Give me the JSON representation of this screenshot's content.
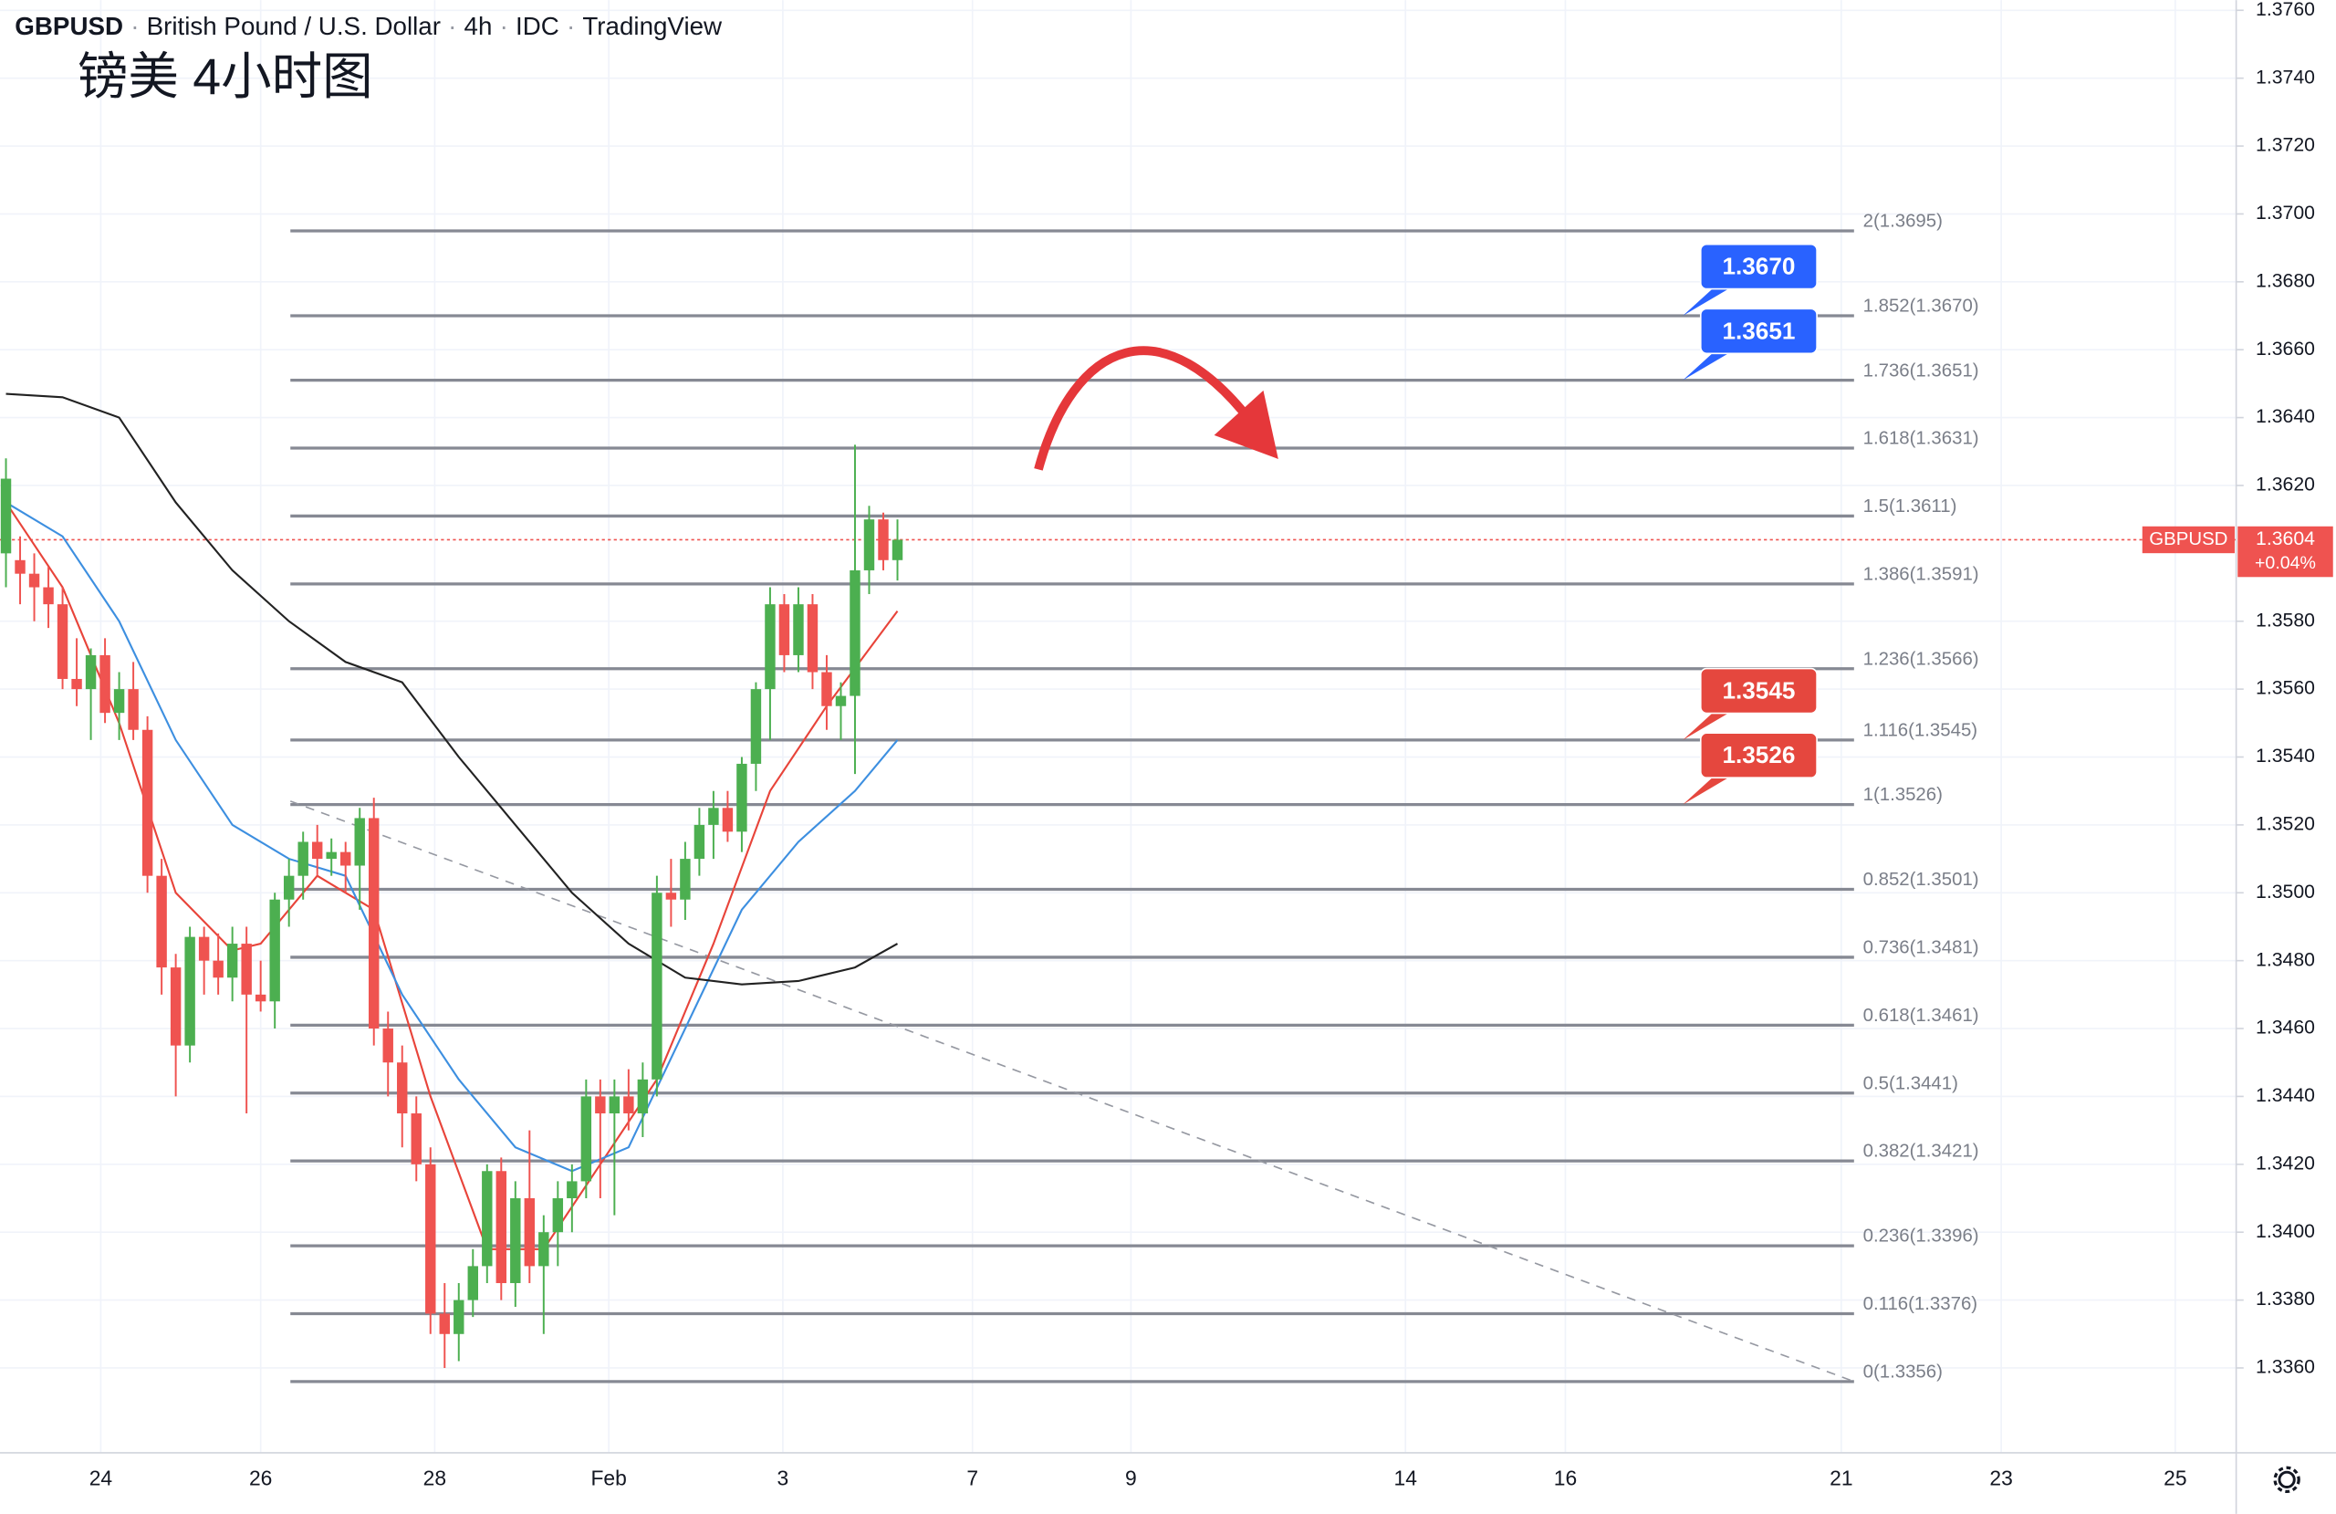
{
  "chart_data": {
    "type": "candlestick",
    "header": [
      "GBPUSD",
      "British Pound / U.S. Dollar",
      "4h",
      "IDC",
      "TradingView"
    ],
    "note": "镑美 4小时图",
    "xlim": [
      0,
      157.5
    ],
    "xticks": [
      {
        "value": 6.7,
        "label": "24"
      },
      {
        "value": 18.0,
        "label": "26"
      },
      {
        "value": 30.3,
        "label": "28"
      },
      {
        "value": 42.6,
        "label": "Feb"
      },
      {
        "value": 54.9,
        "label": "3"
      },
      {
        "value": 68.3,
        "label": "7"
      },
      {
        "value": 79.5,
        "label": "9"
      },
      {
        "value": 98.9,
        "label": "14"
      },
      {
        "value": 110.2,
        "label": "16"
      },
      {
        "value": 129.7,
        "label": "21"
      },
      {
        "value": 141.0,
        "label": "23"
      },
      {
        "value": 153.3,
        "label": "25"
      }
    ],
    "ylim": [
      1.3335,
      1.3763
    ],
    "yticks": [
      {
        "value": 1.336,
        "label": "1.3360"
      },
      {
        "value": 1.338,
        "label": "1.3380"
      },
      {
        "value": 1.34,
        "label": "1.3400"
      },
      {
        "value": 1.342,
        "label": "1.3420"
      },
      {
        "value": 1.344,
        "label": "1.3440"
      },
      {
        "value": 1.346,
        "label": "1.3460"
      },
      {
        "value": 1.348,
        "label": "1.3480"
      },
      {
        "value": 1.35,
        "label": "1.3500"
      },
      {
        "value": 1.352,
        "label": "1.3520"
      },
      {
        "value": 1.354,
        "label": "1.3540"
      },
      {
        "value": 1.356,
        "label": "1.3560"
      },
      {
        "value": 1.358,
        "label": "1.3580"
      },
      {
        "value": 1.362,
        "label": "1.3620"
      },
      {
        "value": 1.364,
        "label": "1.3640"
      },
      {
        "value": 1.366,
        "label": "1.3660"
      },
      {
        "value": 1.368,
        "label": "1.3680"
      },
      {
        "value": 1.37,
        "label": "1.3700"
      },
      {
        "value": 1.372,
        "label": "1.3720"
      },
      {
        "value": 1.374,
        "label": "1.3740"
      },
      {
        "value": 1.376,
        "label": "1.3760"
      }
    ],
    "up_color": "#4caf50",
    "down_color": "#ef5350",
    "ohlc": [
      [
        1.36,
        1.3628,
        1.359,
        1.3622
      ],
      [
        1.3598,
        1.3605,
        1.3585,
        1.3594
      ],
      [
        1.3594,
        1.36,
        1.358,
        1.359
      ],
      [
        1.359,
        1.3596,
        1.3578,
        1.3585
      ],
      [
        1.3585,
        1.359,
        1.356,
        1.3563
      ],
      [
        1.3563,
        1.3575,
        1.3555,
        1.356
      ],
      [
        1.356,
        1.3572,
        1.3545,
        1.357
      ],
      [
        1.357,
        1.3575,
        1.355,
        1.3553
      ],
      [
        1.3553,
        1.3565,
        1.3545,
        1.356
      ],
      [
        1.356,
        1.3568,
        1.3545,
        1.3548
      ],
      [
        1.3548,
        1.3552,
        1.35,
        1.3505
      ],
      [
        1.3505,
        1.351,
        1.347,
        1.3478
      ],
      [
        1.3478,
        1.3482,
        1.344,
        1.3455
      ],
      [
        1.3455,
        1.349,
        1.345,
        1.3487
      ],
      [
        1.3487,
        1.349,
        1.347,
        1.348
      ],
      [
        1.348,
        1.3488,
        1.347,
        1.3475
      ],
      [
        1.3475,
        1.349,
        1.3468,
        1.3485
      ],
      [
        1.3485,
        1.349,
        1.3435,
        1.347
      ],
      [
        1.347,
        1.348,
        1.3465,
        1.3468
      ],
      [
        1.3468,
        1.35,
        1.346,
        1.3498
      ],
      [
        1.3498,
        1.351,
        1.349,
        1.3505
      ],
      [
        1.3505,
        1.3518,
        1.3498,
        1.3515
      ],
      [
        1.3515,
        1.352,
        1.3505,
        1.351
      ],
      [
        1.351,
        1.3516,
        1.3505,
        1.3512
      ],
      [
        1.3512,
        1.3515,
        1.35,
        1.3508
      ],
      [
        1.3508,
        1.3525,
        1.3495,
        1.3522
      ],
      [
        1.3522,
        1.3528,
        1.3455,
        1.346
      ],
      [
        1.346,
        1.3465,
        1.344,
        1.345
      ],
      [
        1.345,
        1.3455,
        1.3425,
        1.3435
      ],
      [
        1.3435,
        1.344,
        1.3415,
        1.342
      ],
      [
        1.342,
        1.3425,
        1.337,
        1.3376
      ],
      [
        1.3376,
        1.3385,
        1.336,
        1.337
      ],
      [
        1.337,
        1.3385,
        1.3362,
        1.338
      ],
      [
        1.338,
        1.3395,
        1.3375,
        1.339
      ],
      [
        1.339,
        1.342,
        1.3385,
        1.3418
      ],
      [
        1.3418,
        1.3422,
        1.338,
        1.3385
      ],
      [
        1.3385,
        1.3415,
        1.3378,
        1.341
      ],
      [
        1.341,
        1.343,
        1.3385,
        1.339
      ],
      [
        1.339,
        1.3405,
        1.337,
        1.34
      ],
      [
        1.34,
        1.3415,
        1.339,
        1.341
      ],
      [
        1.341,
        1.342,
        1.34,
        1.3415
      ],
      [
        1.3415,
        1.3445,
        1.341,
        1.344
      ],
      [
        1.344,
        1.3445,
        1.341,
        1.3435
      ],
      [
        1.3435,
        1.3445,
        1.3405,
        1.344
      ],
      [
        1.344,
        1.3448,
        1.343,
        1.3435
      ],
      [
        1.3435,
        1.345,
        1.3428,
        1.3445
      ],
      [
        1.3445,
        1.3505,
        1.344,
        1.35
      ],
      [
        1.35,
        1.351,
        1.349,
        1.3498
      ],
      [
        1.3498,
        1.3515,
        1.3492,
        1.351
      ],
      [
        1.351,
        1.3525,
        1.3505,
        1.352
      ],
      [
        1.352,
        1.353,
        1.351,
        1.3525
      ],
      [
        1.3525,
        1.353,
        1.3515,
        1.3518
      ],
      [
        1.3518,
        1.354,
        1.3512,
        1.3538
      ],
      [
        1.3538,
        1.3562,
        1.353,
        1.356
      ],
      [
        1.356,
        1.359,
        1.3545,
        1.3585
      ],
      [
        1.3585,
        1.3588,
        1.3565,
        1.357
      ],
      [
        1.357,
        1.359,
        1.3565,
        1.3585
      ],
      [
        1.3585,
        1.3588,
        1.356,
        1.3565
      ],
      [
        1.3565,
        1.357,
        1.3548,
        1.3555
      ],
      [
        1.3555,
        1.3562,
        1.3545,
        1.3558
      ],
      [
        1.3558,
        1.3632,
        1.3535,
        1.3595
      ],
      [
        1.3595,
        1.3614,
        1.3588,
        1.361
      ],
      [
        1.361,
        1.3612,
        1.3595,
        1.3598
      ],
      [
        1.3598,
        1.361,
        1.3592,
        1.3604
      ]
    ],
    "series": [
      {
        "color": "#e8443a",
        "x": [
          0,
          4,
          8,
          12,
          16,
          18,
          22,
          26,
          30,
          34,
          38,
          42,
          46,
          50,
          54,
          58,
          63
        ],
        "values": [
          1.3615,
          1.359,
          1.355,
          1.35,
          1.3483,
          1.3485,
          1.3505,
          1.3495,
          1.344,
          1.3395,
          1.3395,
          1.342,
          1.3445,
          1.3485,
          1.353,
          1.3555,
          1.3583
        ]
      },
      {
        "color": "#3d8fe0",
        "x": [
          0,
          4,
          8,
          12,
          16,
          20,
          24,
          28,
          32,
          36,
          40,
          44,
          48,
          52,
          56,
          60,
          63
        ],
        "values": [
          1.3615,
          1.3605,
          1.358,
          1.3545,
          1.352,
          1.351,
          1.3505,
          1.347,
          1.3445,
          1.3425,
          1.3418,
          1.3425,
          1.346,
          1.3495,
          1.3515,
          1.353,
          1.3545
        ]
      },
      {
        "color": "#222222",
        "x": [
          0,
          4,
          8,
          12,
          16,
          20,
          24,
          28,
          32,
          36,
          40,
          44,
          48,
          52,
          56,
          60,
          63
        ],
        "values": [
          1.3647,
          1.3646,
          1.364,
          1.3615,
          1.3595,
          1.358,
          1.3568,
          1.3562,
          1.354,
          1.352,
          1.35,
          1.3485,
          1.3475,
          1.3473,
          1.3474,
          1.3478,
          1.3485
        ]
      }
    ],
    "fib_x": [
      20.1,
      130.6
    ],
    "fib_levels": [
      {
        "value": 1.3695,
        "label": "2(1.3695)"
      },
      {
        "value": 1.367,
        "label": "1.852(1.3670)"
      },
      {
        "value": 1.3651,
        "label": "1.736(1.3651)"
      },
      {
        "value": 1.3631,
        "label": "1.618(1.3631)"
      },
      {
        "value": 1.3611,
        "label": "1.5(1.3611)"
      },
      {
        "value": 1.3591,
        "label": "1.386(1.3591)"
      },
      {
        "value": 1.3566,
        "label": "1.236(1.3566)"
      },
      {
        "value": 1.3545,
        "label": "1.116(1.3545)"
      },
      {
        "value": 1.3526,
        "label": "1(1.3526)"
      },
      {
        "value": 1.3501,
        "label": "0.852(1.3501)"
      },
      {
        "value": 1.3481,
        "label": "0.736(1.3481)"
      },
      {
        "value": 1.3461,
        "label": "0.618(1.3461)"
      },
      {
        "value": 1.3441,
        "label": "0.5(1.3441)"
      },
      {
        "value": 1.3421,
        "label": "0.382(1.3421)"
      },
      {
        "value": 1.3396,
        "label": "0.236(1.3396)"
      },
      {
        "value": 1.3376,
        "label": "0.116(1.3376)"
      },
      {
        "value": 1.3356,
        "label": "0(1.3356)"
      }
    ],
    "trendline": {
      "x": [
        20.1,
        130.6
      ],
      "values": [
        1.3527,
        1.3356
      ]
    },
    "callouts": [
      {
        "value": 1.367,
        "label": "1.3670",
        "color": "#2962ff"
      },
      {
        "value": 1.3651,
        "label": "1.3651",
        "color": "#2962ff"
      },
      {
        "value": 1.3545,
        "label": "1.3545",
        "color": "#e5473e"
      },
      {
        "value": 1.3526,
        "label": "1.3526",
        "color": "#e5473e"
      }
    ],
    "callout_x": 118.5,
    "symbol": "GBPUSD",
    "last_price": {
      "value": 1.3604,
      "label": "1.3604"
    },
    "change_label": "+0.04%"
  }
}
